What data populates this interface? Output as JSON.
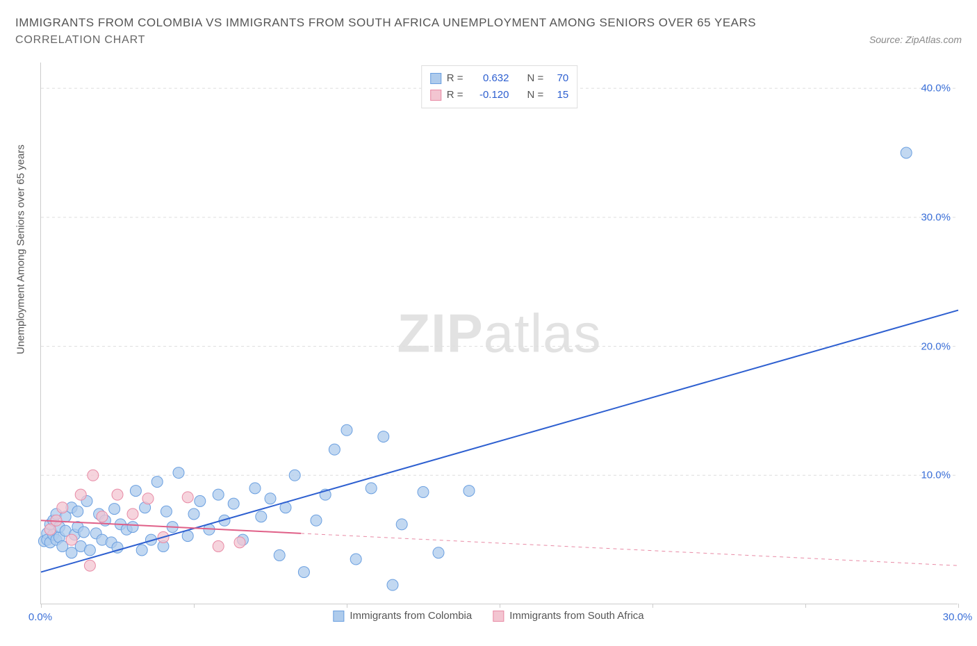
{
  "header": {
    "title": "IMMIGRANTS FROM COLOMBIA VS IMMIGRANTS FROM SOUTH AFRICA UNEMPLOYMENT AMONG SENIORS OVER 65 YEARS",
    "subtitle": "CORRELATION CHART",
    "source": "Source: ZipAtlas.com"
  },
  "chart": {
    "type": "scatter",
    "ylabel": "Unemployment Among Seniors over 65 years",
    "xlim": [
      0,
      30
    ],
    "ylim": [
      0,
      42
    ],
    "x_ticks": [
      0,
      5,
      10,
      15,
      20,
      25,
      30
    ],
    "x_tick_labels": [
      "0.0%",
      "",
      "",
      "",
      "",
      "",
      "30.0%"
    ],
    "y_ticks": [
      10,
      20,
      30,
      40
    ],
    "y_tick_labels": [
      "10.0%",
      "20.0%",
      "30.0%",
      "40.0%"
    ],
    "x_tick_color": "#3a6fd8",
    "y_tick_color": "#3a6fd8",
    "grid_color": "#dddddd",
    "background": "#ffffff",
    "watermark": "ZIPatlas",
    "series": [
      {
        "name": "Immigrants from Colombia",
        "color_fill": "#aecbec",
        "color_stroke": "#6a9fe0",
        "marker_radius": 8,
        "marker_opacity": 0.75,
        "trend": {
          "x1": 0,
          "y1": 2.5,
          "x2": 30,
          "y2": 22.8,
          "color": "#2d5fd0",
          "width": 2,
          "dash": "none"
        },
        "legend_stats": {
          "r_label": "R =",
          "r_value": "0.632",
          "n_label": "N =",
          "n_value": "70"
        },
        "points": [
          [
            0.1,
            4.9
          ],
          [
            0.2,
            5.5
          ],
          [
            0.2,
            5.0
          ],
          [
            0.3,
            6.2
          ],
          [
            0.3,
            4.8
          ],
          [
            0.4,
            5.4
          ],
          [
            0.4,
            6.5
          ],
          [
            0.5,
            5.0
          ],
          [
            0.5,
            7.0
          ],
          [
            0.6,
            5.2
          ],
          [
            0.6,
            6.0
          ],
          [
            0.7,
            4.5
          ],
          [
            0.8,
            5.7
          ],
          [
            0.8,
            6.8
          ],
          [
            1.0,
            4.0
          ],
          [
            1.0,
            7.5
          ],
          [
            1.1,
            5.4
          ],
          [
            1.2,
            6.0
          ],
          [
            1.2,
            7.2
          ],
          [
            1.3,
            4.5
          ],
          [
            1.4,
            5.6
          ],
          [
            1.5,
            8.0
          ],
          [
            1.6,
            4.2
          ],
          [
            1.8,
            5.5
          ],
          [
            1.9,
            7.0
          ],
          [
            2.0,
            5.0
          ],
          [
            2.1,
            6.5
          ],
          [
            2.3,
            4.8
          ],
          [
            2.4,
            7.4
          ],
          [
            2.5,
            4.4
          ],
          [
            2.6,
            6.2
          ],
          [
            2.8,
            5.8
          ],
          [
            3.0,
            6.0
          ],
          [
            3.1,
            8.8
          ],
          [
            3.3,
            4.2
          ],
          [
            3.4,
            7.5
          ],
          [
            3.6,
            5.0
          ],
          [
            3.8,
            9.5
          ],
          [
            4.0,
            4.5
          ],
          [
            4.1,
            7.2
          ],
          [
            4.3,
            6.0
          ],
          [
            4.5,
            10.2
          ],
          [
            4.8,
            5.3
          ],
          [
            5.0,
            7.0
          ],
          [
            5.2,
            8.0
          ],
          [
            5.5,
            5.8
          ],
          [
            5.8,
            8.5
          ],
          [
            6.0,
            6.5
          ],
          [
            6.3,
            7.8
          ],
          [
            6.6,
            5.0
          ],
          [
            7.0,
            9.0
          ],
          [
            7.2,
            6.8
          ],
          [
            7.5,
            8.2
          ],
          [
            7.8,
            3.8
          ],
          [
            8.0,
            7.5
          ],
          [
            8.3,
            10.0
          ],
          [
            8.6,
            2.5
          ],
          [
            9.0,
            6.5
          ],
          [
            9.3,
            8.5
          ],
          [
            9.6,
            12.0
          ],
          [
            10.0,
            13.5
          ],
          [
            10.3,
            3.5
          ],
          [
            10.8,
            9.0
          ],
          [
            11.2,
            13.0
          ],
          [
            11.8,
            6.2
          ],
          [
            12.5,
            8.7
          ],
          [
            13.0,
            4.0
          ],
          [
            11.5,
            1.5
          ],
          [
            28.3,
            35.0
          ],
          [
            14.0,
            8.8
          ]
        ]
      },
      {
        "name": "Immigrants from South Africa",
        "color_fill": "#f3c5d1",
        "color_stroke": "#e88aa5",
        "marker_radius": 8,
        "marker_opacity": 0.75,
        "trend": {
          "x1": 0,
          "y1": 6.5,
          "x2": 8.5,
          "y2": 5.5,
          "color": "#e06088",
          "width": 2,
          "dash": "none"
        },
        "extrapolation": {
          "x1": 8.5,
          "y1": 5.5,
          "x2": 30,
          "y2": 3.0,
          "color": "#e88aa5",
          "width": 1,
          "dash": "5,5"
        },
        "legend_stats": {
          "r_label": "R =",
          "r_value": "-0.120",
          "n_label": "N =",
          "n_value": "15"
        },
        "points": [
          [
            0.3,
            5.8
          ],
          [
            0.5,
            6.5
          ],
          [
            0.7,
            7.5
          ],
          [
            1.0,
            5.0
          ],
          [
            1.3,
            8.5
          ],
          [
            1.7,
            10.0
          ],
          [
            2.0,
            6.8
          ],
          [
            2.5,
            8.5
          ],
          [
            3.0,
            7.0
          ],
          [
            3.5,
            8.2
          ],
          [
            4.0,
            5.2
          ],
          [
            4.8,
            8.3
          ],
          [
            5.8,
            4.5
          ],
          [
            1.6,
            3.0
          ],
          [
            6.5,
            4.8
          ]
        ]
      }
    ],
    "bottom_legend": [
      {
        "label": "Immigrants from Colombia",
        "fill": "#aecbec",
        "stroke": "#6a9fe0"
      },
      {
        "label": "Immigrants from South Africa",
        "fill": "#f3c5d1",
        "stroke": "#e88aa5"
      }
    ]
  }
}
